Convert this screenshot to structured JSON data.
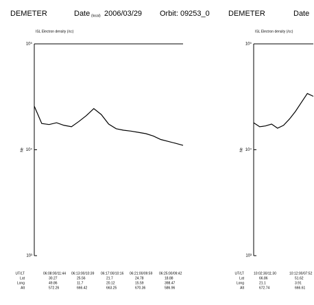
{
  "chart_data": [
    {
      "type": "line",
      "title": "DEMETER",
      "date_label": "Date",
      "date_sub": "(local)",
      "date": "2006/03/29",
      "orbit": "Orbit: 09253_0",
      "subtitle": "ISL Electron density (/cc)",
      "ylabel": "Ne",
      "log_y": true,
      "ylim": [
        1000,
        100000
      ],
      "yticks": [
        {
          "value": 1000,
          "label": "10³"
        },
        {
          "value": 10000,
          "label": "10⁴"
        },
        {
          "value": 100000,
          "label": "10⁵"
        }
      ],
      "xlim": [
        0,
        100
      ],
      "x": [
        0,
        5,
        10,
        15,
        20,
        25,
        30,
        35,
        40,
        45,
        50,
        55,
        60,
        65,
        70,
        75,
        80,
        85,
        90,
        95,
        100
      ],
      "values": [
        25800,
        17700,
        17300,
        18000,
        17000,
        16500,
        18500,
        21000,
        24500,
        21500,
        17500,
        15800,
        15300,
        15000,
        14600,
        14200,
        13500,
        12500,
        12000,
        11500,
        11000
      ],
      "color": "#000000",
      "table": {
        "row_labels": [
          "UT/LT",
          "Lat",
          "Long",
          "Alt"
        ],
        "columns": [
          [
            "06:08:00/11:44",
            "30.27",
            "49.86",
            "572.26"
          ],
          [
            "06:13:00/10:39",
            "25.56",
            "11.7",
            "666.42"
          ],
          [
            "06:17:00/10:16",
            "21.7",
            "20.12",
            "663.25"
          ],
          [
            "06:21:00/09:59",
            "24.78",
            "15.59",
            "670.36"
          ],
          [
            "06:25:00/09:42",
            "18.88",
            "398.47",
            "586.96"
          ]
        ]
      }
    },
    {
      "type": "line",
      "title": "DEMETER",
      "date_label": "Date",
      "subtitle": "ISL Electron density (/cc)",
      "ylabel": "Ne",
      "log_y": true,
      "ylim": [
        1000,
        100000
      ],
      "yticks": [
        {
          "value": 1000,
          "label": "10³"
        },
        {
          "value": 10000,
          "label": "10⁴"
        },
        {
          "value": 100000,
          "label": "10⁵"
        }
      ],
      "xlim": [
        0,
        100
      ],
      "x": [
        0,
        10,
        20,
        30,
        40,
        50,
        60,
        70,
        80,
        90,
        100
      ],
      "values": [
        18000,
        16500,
        16800,
        17500,
        16000,
        17000,
        19500,
        23000,
        28000,
        34000,
        32000
      ],
      "color": "#000000",
      "table": {
        "row_labels": [
          "UT/LT",
          "Lat",
          "Long",
          "Alt"
        ],
        "columns": [
          [
            "10:02:30/11:30",
            "66.86",
            "21.1",
            "672.74"
          ],
          [
            "10:12:00/07:52",
            "51.62",
            "3.91",
            "666.61"
          ]
        ]
      }
    }
  ]
}
